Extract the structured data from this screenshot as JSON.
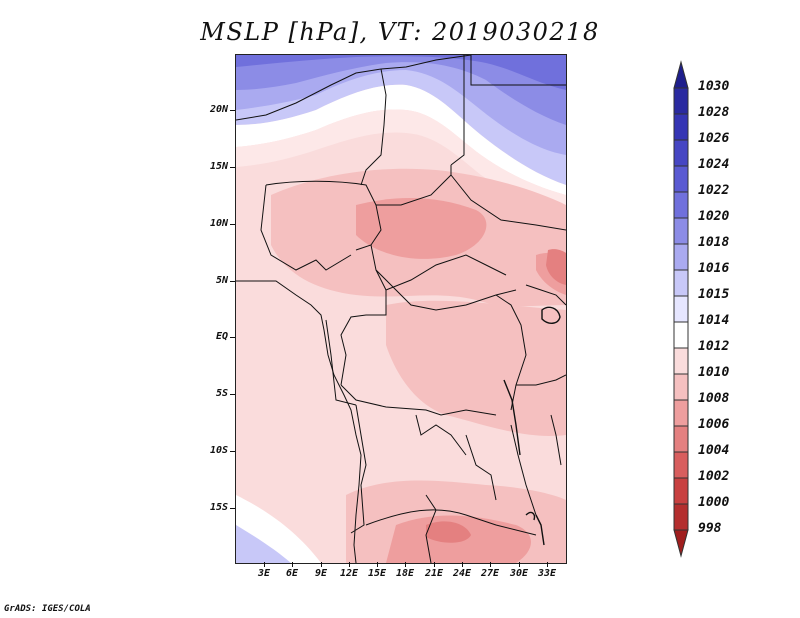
{
  "title": "MSLP [hPa], VT: 2019030218",
  "footer": "GrADS: IGES/COLA",
  "map": {
    "variable": "Mean sea level pressure",
    "units": "hPa",
    "valid_time": "2019030218",
    "lat_labels": [
      "20N",
      "15N",
      "10N",
      "5N",
      "EQ",
      "5S",
      "10S",
      "15S"
    ],
    "lon_labels": [
      "3E",
      "6E",
      "9E",
      "12E",
      "15E",
      "18E",
      "21E",
      "24E",
      "27E",
      "30E",
      "33E"
    ]
  },
  "colorbar": {
    "levels": [
      "1030",
      "1028",
      "1026",
      "1024",
      "1022",
      "1020",
      "1018",
      "1016",
      "1015",
      "1014",
      "1012",
      "1010",
      "1008",
      "1006",
      "1004",
      "1002",
      "1000",
      "998"
    ],
    "colors": [
      "#1e1e8c",
      "#2a2aa0",
      "#3535b4",
      "#4646c3",
      "#5a5ad2",
      "#7070dc",
      "#8c8ce6",
      "#aaaaf0",
      "#c8c8f8",
      "#e6e6ff",
      "#ffffff",
      "#fadcdc",
      "#f5c0c0",
      "#ee9e9e",
      "#e48080",
      "#d85e5e",
      "#c84040",
      "#b42e2e",
      "#a01e1e"
    ]
  }
}
